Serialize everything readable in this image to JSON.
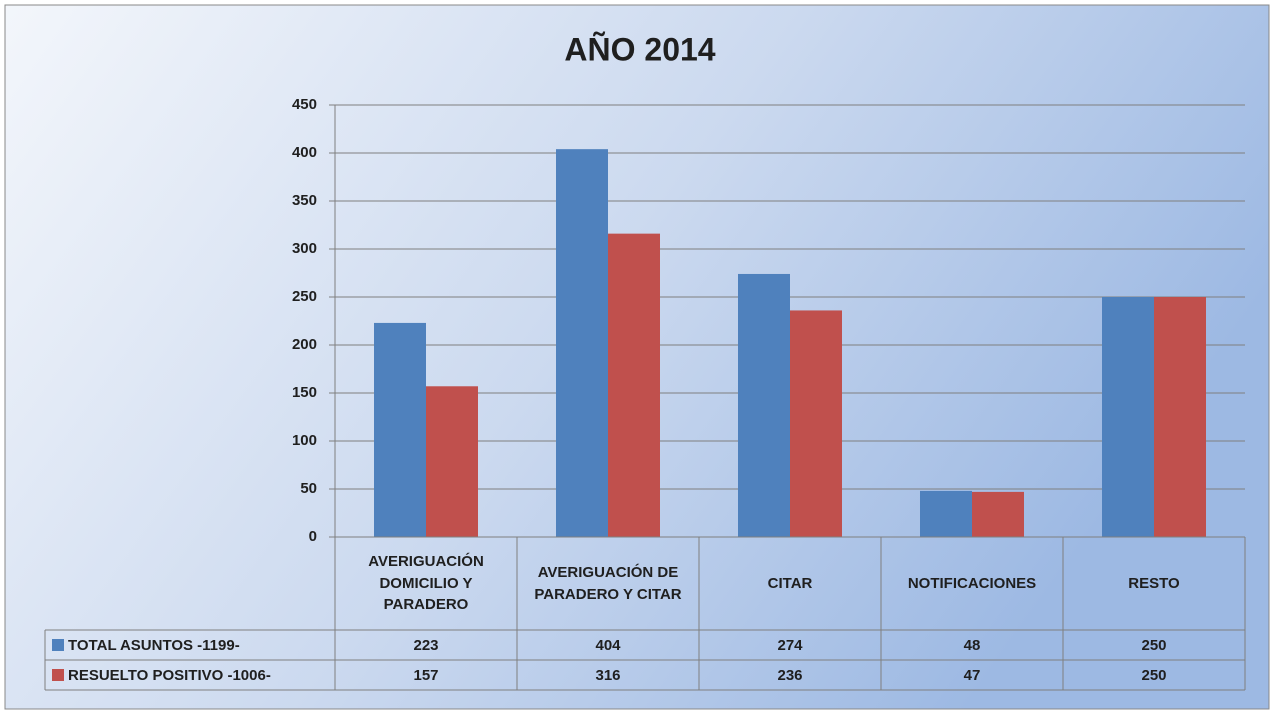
{
  "chart_data": {
    "type": "bar",
    "title": "AÑO 2014",
    "categories": [
      "AVERIGUACIÓN DOMICILIO Y PARADERO",
      "AVERIGUACIÓN DE PARADERO  Y CITAR",
      "CITAR",
      "NOTIFICACIONES",
      "RESTO"
    ],
    "series": [
      {
        "name": "TOTAL ASUNTOS -1199-",
        "color": "#4f81bd",
        "values": [
          223,
          404,
          274,
          48,
          250
        ]
      },
      {
        "name": "RESUELTO POSITIVO  -1006-",
        "color": "#c0504d",
        "values": [
          157,
          316,
          236,
          47,
          250
        ]
      }
    ],
    "ylim": [
      0,
      450
    ],
    "yticks": [
      0,
      50,
      100,
      150,
      200,
      250,
      300,
      350,
      400,
      450
    ],
    "grid": true,
    "legend": "data-table"
  }
}
